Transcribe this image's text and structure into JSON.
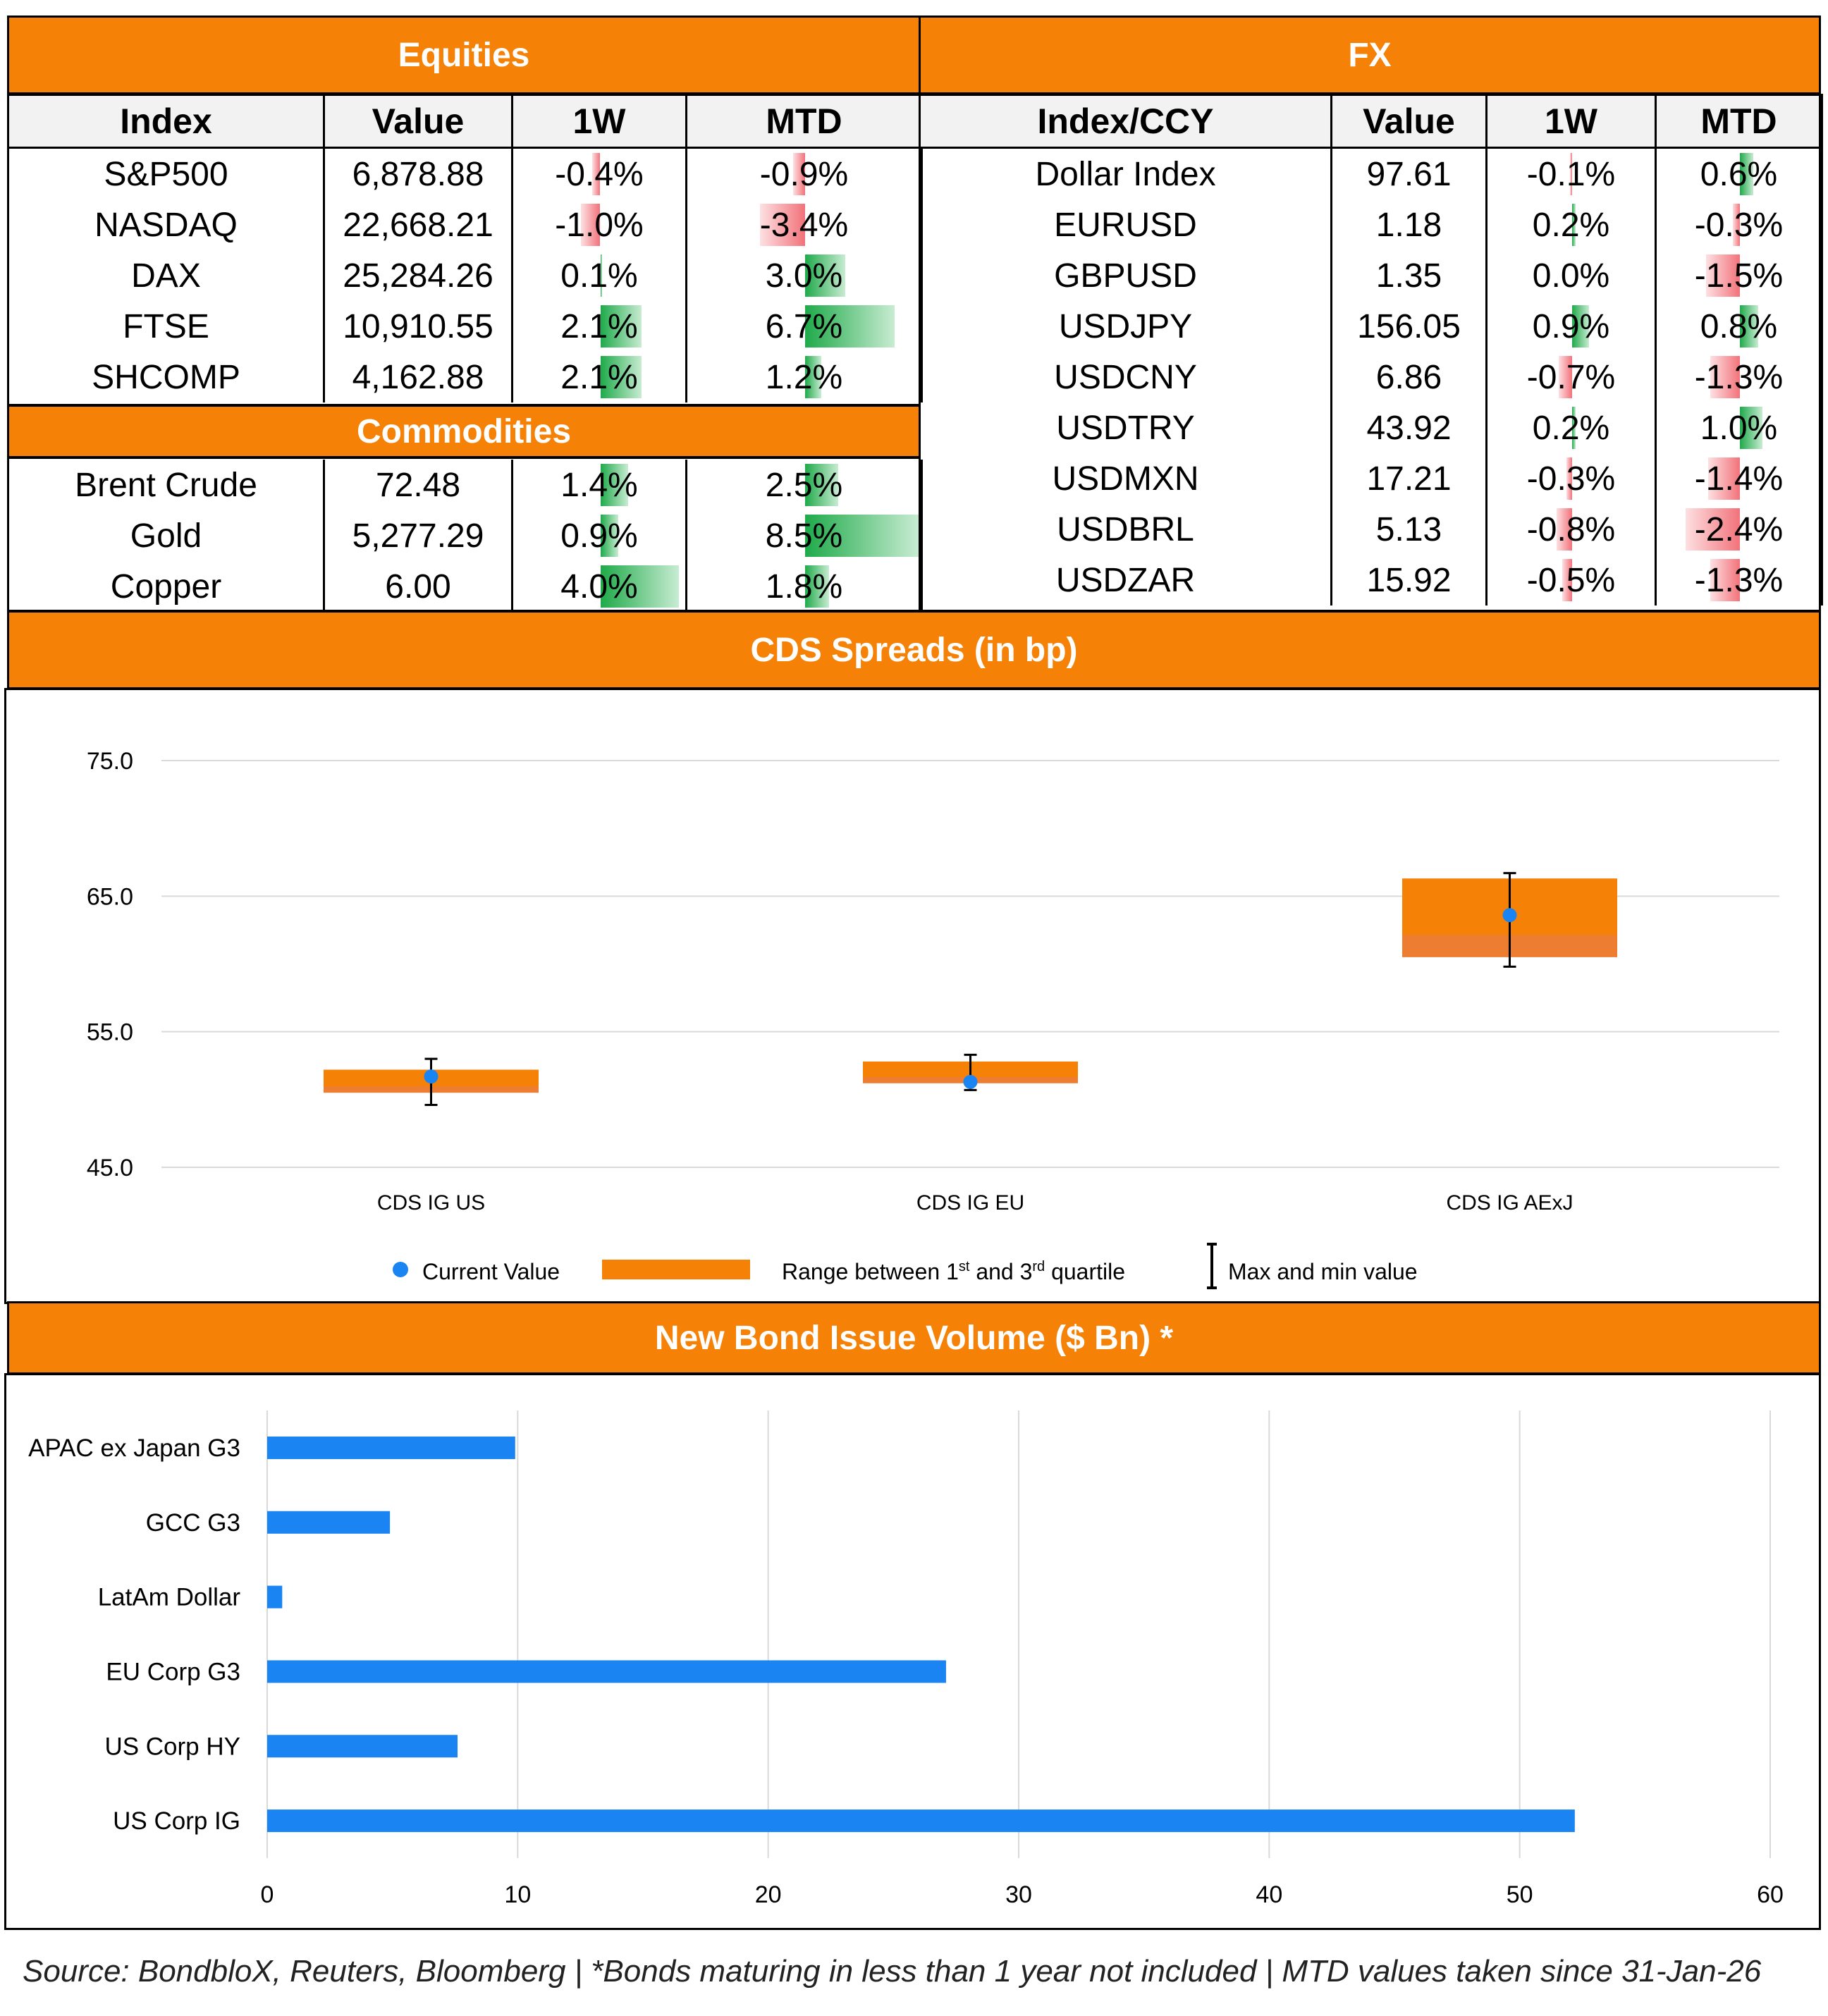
{
  "equities": {
    "title": "Equities",
    "columns": [
      "Index",
      "Value",
      "1W",
      "MTD"
    ],
    "rows": [
      {
        "name": "S&P500",
        "value": "6,878.88",
        "w1": "-0.4%",
        "mtd": "-0.9%",
        "w1_num": -0.4,
        "mtd_num": -0.9
      },
      {
        "name": "NASDAQ",
        "value": "22,668.21",
        "w1": "-1.0%",
        "mtd": "-3.4%",
        "w1_num": -1.0,
        "mtd_num": -3.4
      },
      {
        "name": "DAX",
        "value": "25,284.26",
        "w1": "0.1%",
        "mtd": "3.0%",
        "w1_num": 0.1,
        "mtd_num": 3.0
      },
      {
        "name": "FTSE",
        "value": "10,910.55",
        "w1": "2.1%",
        "mtd": "6.7%",
        "w1_num": 2.1,
        "mtd_num": 6.7
      },
      {
        "name": "SHCOMP",
        "value": "4,162.88",
        "w1": "2.1%",
        "mtd": "1.2%",
        "w1_num": 2.1,
        "mtd_num": 1.2
      }
    ]
  },
  "commodities": {
    "title": "Commodities",
    "rows": [
      {
        "name": "Brent Crude",
        "value": "72.48",
        "w1": "1.4%",
        "mtd": "2.5%",
        "w1_num": 1.4,
        "mtd_num": 2.5
      },
      {
        "name": "Gold",
        "value": "5,277.29",
        "w1": "0.9%",
        "mtd": "8.5%",
        "w1_num": 0.9,
        "mtd_num": 8.5
      },
      {
        "name": "Copper",
        "value": "6.00",
        "w1": "4.0%",
        "mtd": "1.8%",
        "w1_num": 4.0,
        "mtd_num": 1.8
      }
    ]
  },
  "fx": {
    "title": "FX",
    "columns": [
      "Index/CCY",
      "Value",
      "1W",
      "MTD"
    ],
    "rows": [
      {
        "name": "Dollar Index",
        "value": "97.61",
        "w1": "-0.1%",
        "mtd": "0.6%",
        "w1_num": -0.1,
        "mtd_num": 0.6
      },
      {
        "name": "EURUSD",
        "value": "1.18",
        "w1": "0.2%",
        "mtd": "-0.3%",
        "w1_num": 0.2,
        "mtd_num": -0.3
      },
      {
        "name": "GBPUSD",
        "value": "1.35",
        "w1": "0.0%",
        "mtd": "-1.5%",
        "w1_num": 0.0,
        "mtd_num": -1.5
      },
      {
        "name": "USDJPY",
        "value": "156.05",
        "w1": "0.9%",
        "mtd": "0.8%",
        "w1_num": 0.9,
        "mtd_num": 0.8
      },
      {
        "name": "USDCNY",
        "value": "6.86",
        "w1": "-0.7%",
        "mtd": "-1.3%",
        "w1_num": -0.7,
        "mtd_num": -1.3
      },
      {
        "name": "USDTRY",
        "value": "43.92",
        "w1": "0.2%",
        "mtd": "1.0%",
        "w1_num": 0.2,
        "mtd_num": 1.0
      },
      {
        "name": "USDMXN",
        "value": "17.21",
        "w1": "-0.3%",
        "mtd": "-1.4%",
        "w1_num": -0.3,
        "mtd_num": -1.4
      },
      {
        "name": "USDBRL",
        "value": "5.13",
        "w1": "-0.8%",
        "mtd": "-2.4%",
        "w1_num": -0.8,
        "mtd_num": -2.4
      },
      {
        "name": "USDZAR",
        "value": "15.92",
        "w1": "-0.5%",
        "mtd": "-1.3%",
        "w1_num": -0.5,
        "mtd_num": -1.3
      }
    ]
  },
  "colors": {
    "orange": "#f58207",
    "blue": "#1a84f2",
    "box_orange": "#ed7d31",
    "pos": "#1faa4a",
    "neg": "#f2727a"
  },
  "chart_data": [
    {
      "type": "box",
      "title": "CDS Spreads (in bp)",
      "categories": [
        "CDS IG US",
        "CDS IG EU",
        "CDS IG AExJ"
      ],
      "q1": [
        50.5,
        51.2,
        60.5
      ],
      "q3": [
        52.2,
        52.8,
        66.3
      ],
      "min": [
        49.6,
        50.7,
        59.8
      ],
      "max": [
        53.0,
        53.3,
        66.7
      ],
      "current": [
        51.7,
        51.3,
        63.6
      ],
      "y_ticks": [
        "75.0",
        "65.0",
        "55.0",
        "45.0"
      ],
      "ylim": [
        45,
        75
      ],
      "legend": {
        "current": "Current Value",
        "range_pre": "Range between 1",
        "range_sup1": "st",
        "range_mid": " and 3",
        "range_sup2": "rd",
        "range_post": " quartile",
        "maxmin": "Max and min value"
      }
    },
    {
      "type": "bar",
      "orientation": "horizontal",
      "title": "New Bond Issue Volume ($ Bn) *",
      "categories": [
        "APAC ex Japan G3",
        "GCC G3",
        "LatAm Dollar",
        "EU Corp G3",
        "US Corp HY",
        "US Corp IG"
      ],
      "values": [
        9.9,
        4.9,
        0.6,
        27.1,
        7.6,
        52.2
      ],
      "x_ticks": [
        "0",
        "10",
        "20",
        "30",
        "40",
        "50",
        "60"
      ],
      "xlim": [
        0,
        60
      ]
    }
  ],
  "footer": "Source: BondbloX, Reuters, Bloomberg | *Bonds maturing in less than 1 year not included | MTD values taken since 31-Jan-26"
}
